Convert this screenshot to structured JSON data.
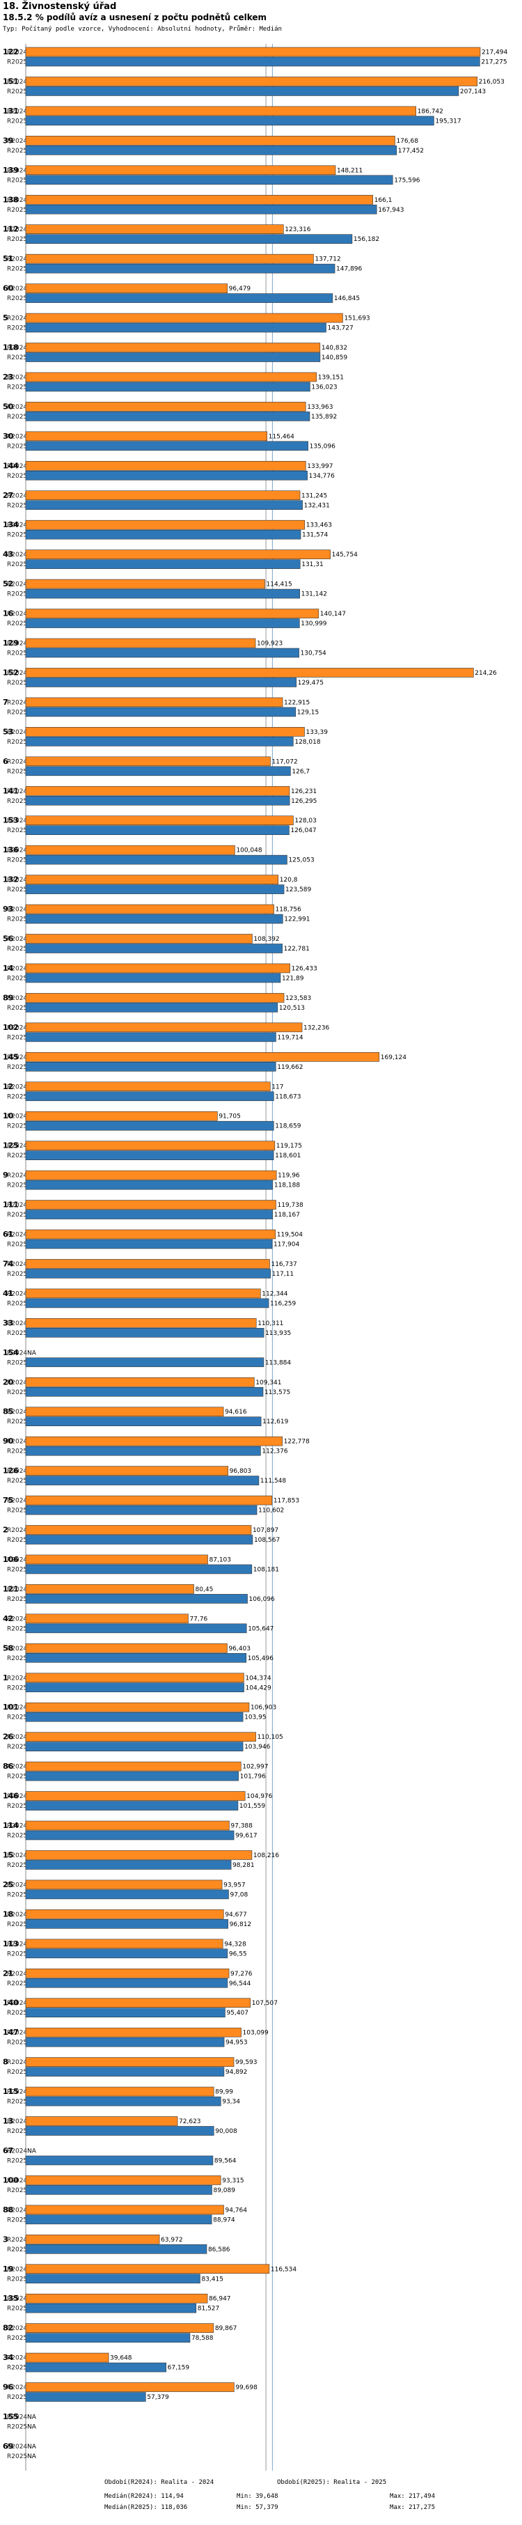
{
  "header": {
    "title": "18. Živnostenský úřad",
    "subtitle": "18.5.2 % podílů avíz a usnesení z počtu podnětů celkem",
    "type_line": "Typ: Počítaný podle vzorce, Vyhodnocení: Absolutní hodnoty, Průměr: Medián"
  },
  "colors": {
    "r2024": "#ff8a1f",
    "r2025": "#2f78b8",
    "median2024": "#999999",
    "median2025": "#7aa7d0"
  },
  "legend": {
    "obdobi1": "Období(R2024): Realita - 2024",
    "obdobi2": "Období(R2025): Realita - 2025",
    "median1": "Medián(R2024): 114,94",
    "median2": "Medián(R2025): 118,036",
    "min1": "Min: 39,648",
    "min2": "Min: 57,379",
    "max1": "Max: 217,494",
    "max2": "Max: 217,275"
  },
  "chart_data": {
    "type": "bar",
    "orientation": "horizontal",
    "series_names": [
      "R2024",
      "R2025"
    ],
    "xlim": [
      0,
      217.494
    ],
    "medians": [
      114.94,
      118.036
    ],
    "na_label": "NA",
    "items": [
      {
        "code": "122",
        "r2024": 217.494,
        "r2025": 217.275,
        "l2024": "217,494",
        "l2025": "217,275"
      },
      {
        "code": "151",
        "r2024": 216.053,
        "r2025": 207.143,
        "l2024": "216,053",
        "l2025": "207,143"
      },
      {
        "code": "131",
        "r2024": 186.742,
        "r2025": 195.317,
        "l2024": "186,742",
        "l2025": "195,317"
      },
      {
        "code": "39",
        "r2024": 176.68,
        "r2025": 177.452,
        "l2024": "176,68",
        "l2025": "177,452"
      },
      {
        "code": "139",
        "r2024": 148.211,
        "r2025": 175.596,
        "l2024": "148,211",
        "l2025": "175,596"
      },
      {
        "code": "138",
        "r2024": 166.1,
        "r2025": 167.943,
        "l2024": "166,1",
        "l2025": "167,943"
      },
      {
        "code": "112",
        "r2024": 123.316,
        "r2025": 156.182,
        "l2024": "123,316",
        "l2025": "156,182"
      },
      {
        "code": "51",
        "r2024": 137.712,
        "r2025": 147.896,
        "l2024": "137,712",
        "l2025": "147,896"
      },
      {
        "code": "60",
        "r2024": 96.479,
        "r2025": 146.845,
        "l2024": "96,479",
        "l2025": "146,845"
      },
      {
        "code": "5",
        "r2024": 151.693,
        "r2025": 143.727,
        "l2024": "151,693",
        "l2025": "143,727"
      },
      {
        "code": "118",
        "r2024": 140.832,
        "r2025": 140.859,
        "l2024": "140,832",
        "l2025": "140,859"
      },
      {
        "code": "23",
        "r2024": 139.151,
        "r2025": 136.023,
        "l2024": "139,151",
        "l2025": "136,023"
      },
      {
        "code": "50",
        "r2024": 133.963,
        "r2025": 135.892,
        "l2024": "133,963",
        "l2025": "135,892"
      },
      {
        "code": "30",
        "r2024": 115.464,
        "r2025": 135.096,
        "l2024": "115,464",
        "l2025": "135,096"
      },
      {
        "code": "144",
        "r2024": 133.997,
        "r2025": 134.776,
        "l2024": "133,997",
        "l2025": "134,776"
      },
      {
        "code": "27",
        "r2024": 131.245,
        "r2025": 132.431,
        "l2024": "131,245",
        "l2025": "132,431"
      },
      {
        "code": "134",
        "r2024": 133.463,
        "r2025": 131.574,
        "l2024": "133,463",
        "l2025": "131,574"
      },
      {
        "code": "43",
        "r2024": 145.754,
        "r2025": 131.31,
        "l2024": "145,754",
        "l2025": "131,31"
      },
      {
        "code": "52",
        "r2024": 114.415,
        "r2025": 131.142,
        "l2024": "114,415",
        "l2025": "131,142"
      },
      {
        "code": "16",
        "r2024": 140.147,
        "r2025": 130.999,
        "l2024": "140,147",
        "l2025": "130,999"
      },
      {
        "code": "129",
        "r2024": 109.923,
        "r2025": 130.754,
        "l2024": "109,923",
        "l2025": "130,754"
      },
      {
        "code": "152",
        "r2024": 214.26,
        "r2025": 129.475,
        "l2024": "214,26",
        "l2025": "129,475"
      },
      {
        "code": "7",
        "r2024": 122.915,
        "r2025": 129.15,
        "l2024": "122,915",
        "l2025": "129,15"
      },
      {
        "code": "53",
        "r2024": 133.39,
        "r2025": 128.018,
        "l2024": "133,39",
        "l2025": "128,018"
      },
      {
        "code": "6",
        "r2024": 117.072,
        "r2025": 126.7,
        "l2024": "117,072",
        "l2025": "126,7"
      },
      {
        "code": "141",
        "r2024": 126.231,
        "r2025": 126.295,
        "l2024": "126,231",
        "l2025": "126,295"
      },
      {
        "code": "153",
        "r2024": 128.03,
        "r2025": 126.047,
        "l2024": "128,03",
        "l2025": "126,047"
      },
      {
        "code": "136",
        "r2024": 100.048,
        "r2025": 125.053,
        "l2024": "100,048",
        "l2025": "125,053"
      },
      {
        "code": "132",
        "r2024": 120.8,
        "r2025": 123.589,
        "l2024": "120,8",
        "l2025": "123,589"
      },
      {
        "code": "93",
        "r2024": 118.756,
        "r2025": 122.991,
        "l2024": "118,756",
        "l2025": "122,991"
      },
      {
        "code": "56",
        "r2024": 108.392,
        "r2025": 122.781,
        "l2024": "108,392",
        "l2025": "122,781"
      },
      {
        "code": "14",
        "r2024": 126.433,
        "r2025": 121.89,
        "l2024": "126,433",
        "l2025": "121,89"
      },
      {
        "code": "89",
        "r2024": 123.583,
        "r2025": 120.513,
        "l2024": "123,583",
        "l2025": "120,513"
      },
      {
        "code": "102",
        "r2024": 132.236,
        "r2025": 119.714,
        "l2024": "132,236",
        "l2025": "119,714"
      },
      {
        "code": "145",
        "r2024": 169.124,
        "r2025": 119.662,
        "l2024": "169,124",
        "l2025": "119,662"
      },
      {
        "code": "12",
        "r2024": 117,
        "r2025": 118.673,
        "l2024": "117",
        "l2025": "118,673"
      },
      {
        "code": "10",
        "r2024": 91.705,
        "r2025": 118.659,
        "l2024": "91,705",
        "l2025": "118,659"
      },
      {
        "code": "125",
        "r2024": 119.175,
        "r2025": 118.601,
        "l2024": "119,175",
        "l2025": "118,601"
      },
      {
        "code": "9",
        "r2024": 119.96,
        "r2025": 118.188,
        "l2024": "119,96",
        "l2025": "118,188"
      },
      {
        "code": "111",
        "r2024": 119.738,
        "r2025": 118.167,
        "l2024": "119,738",
        "l2025": "118,167"
      },
      {
        "code": "61",
        "r2024": 119.504,
        "r2025": 117.904,
        "l2024": "119,504",
        "l2025": "117,904"
      },
      {
        "code": "74",
        "r2024": 116.737,
        "r2025": 117.11,
        "l2024": "116,737",
        "l2025": "117,11"
      },
      {
        "code": "41",
        "r2024": 112.344,
        "r2025": 116.259,
        "l2024": "112,344",
        "l2025": "116,259"
      },
      {
        "code": "33",
        "r2024": 110.311,
        "r2025": 113.935,
        "l2024": "110,311",
        "l2025": "113,935"
      },
      {
        "code": "154",
        "r2024": null,
        "r2025": 113.884,
        "l2024": null,
        "l2025": "113,884"
      },
      {
        "code": "20",
        "r2024": 109.341,
        "r2025": 113.575,
        "l2024": "109,341",
        "l2025": "113,575"
      },
      {
        "code": "85",
        "r2024": 94.616,
        "r2025": 112.619,
        "l2024": "94,616",
        "l2025": "112,619"
      },
      {
        "code": "90",
        "r2024": 122.778,
        "r2025": 112.376,
        "l2024": "122,778",
        "l2025": "112,376"
      },
      {
        "code": "126",
        "r2024": 96.803,
        "r2025": 111.548,
        "l2024": "96,803",
        "l2025": "111,548"
      },
      {
        "code": "75",
        "r2024": 117.853,
        "r2025": 110.602,
        "l2024": "117,853",
        "l2025": "110,602"
      },
      {
        "code": "2",
        "r2024": 107.897,
        "r2025": 108.567,
        "l2024": "107,897",
        "l2025": "108,567"
      },
      {
        "code": "106",
        "r2024": 87.103,
        "r2025": 108.181,
        "l2024": "87,103",
        "l2025": "108,181"
      },
      {
        "code": "121",
        "r2024": 80.45,
        "r2025": 106.096,
        "l2024": "80,45",
        "l2025": "106,096"
      },
      {
        "code": "42",
        "r2024": 77.76,
        "r2025": 105.647,
        "l2024": "77,76",
        "l2025": "105,647"
      },
      {
        "code": "58",
        "r2024": 96.403,
        "r2025": 105.496,
        "l2024": "96,403",
        "l2025": "105,496"
      },
      {
        "code": "1",
        "r2024": 104.374,
        "r2025": 104.429,
        "l2024": "104,374",
        "l2025": "104,429"
      },
      {
        "code": "101",
        "r2024": 106.903,
        "r2025": 103.95,
        "l2024": "106,903",
        "l2025": "103,95"
      },
      {
        "code": "26",
        "r2024": 110.105,
        "r2025": 103.946,
        "l2024": "110,105",
        "l2025": "103,946"
      },
      {
        "code": "86",
        "r2024": 102.997,
        "r2025": 101.796,
        "l2024": "102,997",
        "l2025": "101,796"
      },
      {
        "code": "146",
        "r2024": 104.976,
        "r2025": 101.559,
        "l2024": "104,976",
        "l2025": "101,559"
      },
      {
        "code": "114",
        "r2024": 97.388,
        "r2025": 99.617,
        "l2024": "97,388",
        "l2025": "99,617"
      },
      {
        "code": "15",
        "r2024": 108.216,
        "r2025": 98.281,
        "l2024": "108,216",
        "l2025": "98,281"
      },
      {
        "code": "25",
        "r2024": 93.957,
        "r2025": 97.08,
        "l2024": "93,957",
        "l2025": "97,08"
      },
      {
        "code": "18",
        "r2024": 94.677,
        "r2025": 96.812,
        "l2024": "94,677",
        "l2025": "96,812"
      },
      {
        "code": "113",
        "r2024": 94.328,
        "r2025": 96.55,
        "l2024": "94,328",
        "l2025": "96,55"
      },
      {
        "code": "21",
        "r2024": 97.276,
        "r2025": 96.544,
        "l2024": "97,276",
        "l2025": "96,544"
      },
      {
        "code": "140",
        "r2024": 107.507,
        "r2025": 95.407,
        "l2024": "107,507",
        "l2025": "95,407"
      },
      {
        "code": "147",
        "r2024": 103.099,
        "r2025": 94.953,
        "l2024": "103,099",
        "l2025": "94,953"
      },
      {
        "code": "8",
        "r2024": 99.593,
        "r2025": 94.892,
        "l2024": "99,593",
        "l2025": "94,892"
      },
      {
        "code": "115",
        "r2024": 89.99,
        "r2025": 93.34,
        "l2024": "89,99",
        "l2025": "93,34"
      },
      {
        "code": "13",
        "r2024": 72.623,
        "r2025": 90.008,
        "l2024": "72,623",
        "l2025": "90,008"
      },
      {
        "code": "67",
        "r2024": null,
        "r2025": 89.564,
        "l2024": null,
        "l2025": "89,564"
      },
      {
        "code": "100",
        "r2024": 93.315,
        "r2025": 89.089,
        "l2024": "93,315",
        "l2025": "89,089"
      },
      {
        "code": "88",
        "r2024": 94.764,
        "r2025": 88.974,
        "l2024": "94,764",
        "l2025": "88,974"
      },
      {
        "code": "3",
        "r2024": 63.972,
        "r2025": 86.586,
        "l2024": "63,972",
        "l2025": "86,586"
      },
      {
        "code": "19",
        "r2024": 116.534,
        "r2025": 83.415,
        "l2024": "116,534",
        "l2025": "83,415"
      },
      {
        "code": "135",
        "r2024": 86.947,
        "r2025": 81.527,
        "l2024": "86,947",
        "l2025": "81,527"
      },
      {
        "code": "82",
        "r2024": 89.867,
        "r2025": 78.588,
        "l2024": "89,867",
        "l2025": "78,588"
      },
      {
        "code": "34",
        "r2024": 39.648,
        "r2025": 67.159,
        "l2024": "39,648",
        "l2025": "67,159"
      },
      {
        "code": "96",
        "r2024": 99.698,
        "r2025": 57.379,
        "l2024": "99,698",
        "l2025": "57,379"
      },
      {
        "code": "155",
        "r2024": null,
        "r2025": null,
        "l2024": null,
        "l2025": null
      },
      {
        "code": "69",
        "r2024": null,
        "r2025": null,
        "l2024": null,
        "l2025": null
      }
    ]
  }
}
